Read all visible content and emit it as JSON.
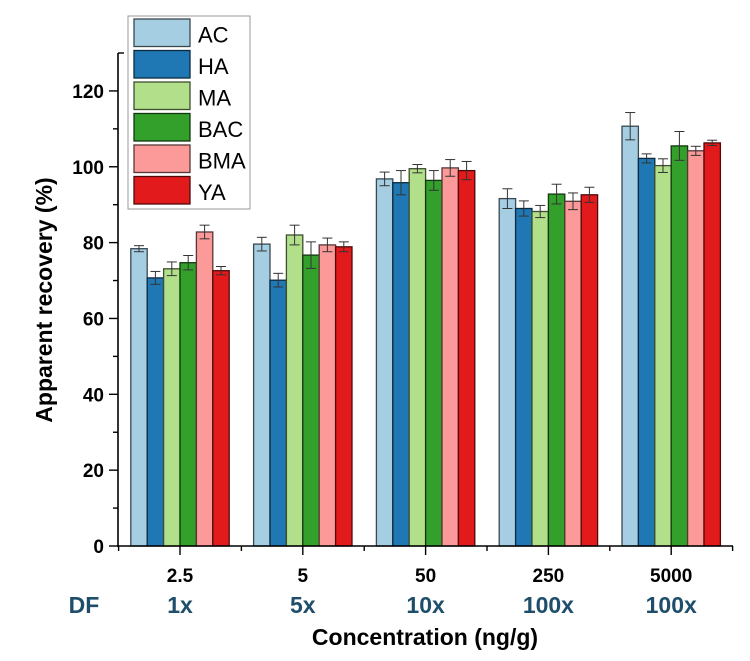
{
  "chart_data": {
    "type": "bar",
    "title": "",
    "xlabel": "Concentration (ng/g)",
    "ylabel": "Apparent recovery (%)",
    "ylim": [
      0,
      130
    ],
    "yticks": [
      0,
      20,
      40,
      60,
      80,
      100,
      120
    ],
    "ytick_labels": [
      "0",
      "20",
      "40",
      "60",
      "80",
      "100",
      "120"
    ],
    "minor_ytick_step": 10,
    "grid": false,
    "legend_position": "top-left",
    "categories": [
      "2.5",
      "5",
      "50",
      "250",
      "5000"
    ],
    "secondary_label": "DF",
    "secondary_categories": [
      "1x",
      "5x",
      "10x",
      "100x",
      "100x"
    ],
    "secondary_color": "#1f4e6b",
    "series": [
      {
        "name": "AC",
        "color": "#a6cee3",
        "values": [
          78.4,
          79.6,
          96.8,
          91.6,
          110.7
        ],
        "errors": [
          0.8,
          1.8,
          1.8,
          2.6,
          3.6
        ]
      },
      {
        "name": "HA",
        "color": "#1f78b4",
        "values": [
          70.7,
          70.1,
          95.8,
          89.0,
          102.2
        ],
        "errors": [
          1.7,
          1.8,
          3.2,
          2.0,
          1.2
        ]
      },
      {
        "name": "MA",
        "color": "#b2df8a",
        "values": [
          73.1,
          82.0,
          99.5,
          88.2,
          100.3
        ],
        "errors": [
          1.8,
          2.6,
          1.1,
          1.6,
          1.8
        ]
      },
      {
        "name": "BAC",
        "color": "#33a02c",
        "values": [
          74.7,
          76.7,
          96.4,
          92.8,
          105.5
        ],
        "errors": [
          1.9,
          3.5,
          2.6,
          2.6,
          3.8
        ]
      },
      {
        "name": "BMA",
        "color": "#fb9a99",
        "values": [
          82.8,
          79.4,
          99.7,
          90.9,
          104.2
        ],
        "errors": [
          1.8,
          1.8,
          2.2,
          2.2,
          1.2
        ]
      },
      {
        "name": "YA",
        "color": "#e31a1c",
        "values": [
          72.6,
          78.9,
          99.0,
          92.6,
          106.3
        ],
        "errors": [
          1.1,
          1.3,
          2.4,
          2.0,
          0.7
        ]
      }
    ]
  }
}
